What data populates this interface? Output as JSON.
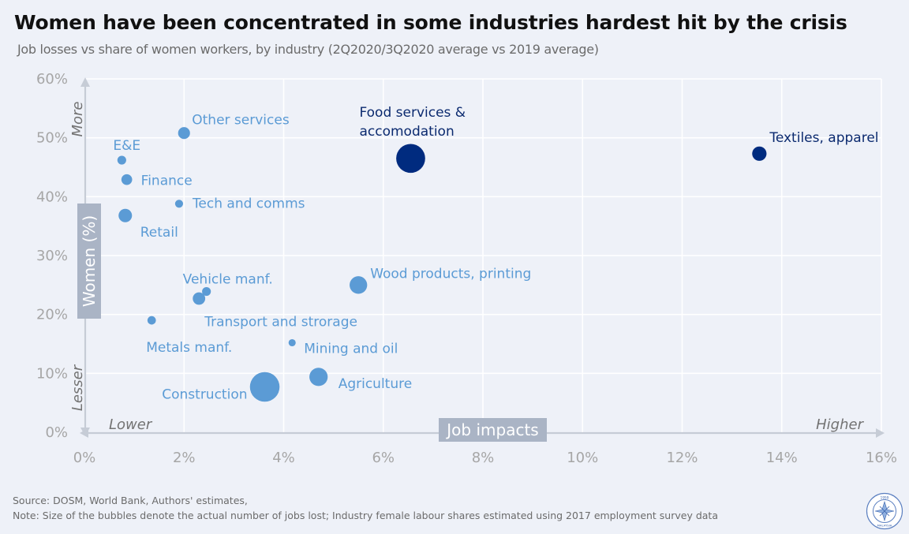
{
  "chart_data": {
    "type": "scatter",
    "title": "Women have been concentrated in some industries hardest hit by the crisis",
    "subtitle": "Job losses vs share of women workers, by industry (2Q2020/3Q2020 average vs 2019 average)",
    "xlim": [
      0,
      16
    ],
    "ylim": [
      0,
      60
    ],
    "x_ticks": [
      "0%",
      "2%",
      "4%",
      "6%",
      "8%",
      "10%",
      "12%",
      "14%",
      "16%"
    ],
    "y_ticks": [
      "0%",
      "10%",
      "20%",
      "30%",
      "40%",
      "50%",
      "60%"
    ],
    "x_tick_values": [
      0,
      2,
      4,
      6,
      8,
      10,
      12,
      14,
      16
    ],
    "y_tick_values": [
      0,
      10,
      20,
      30,
      40,
      50,
      60
    ],
    "xlabel": "Job impacts",
    "ylabel": "Women (%)",
    "x_low_label": "Lower",
    "x_high_label": "Higher",
    "y_low_label": "Lesser",
    "y_high_label": "More",
    "grid": true,
    "colors": {
      "light": "#5b9bd5",
      "dark": "#002b7f",
      "label_light": "#5b9bd5",
      "label_dark": "#0b2a6f",
      "axis_text": "#a6a6a6"
    },
    "points": [
      {
        "label": "Other services",
        "x": 2.0,
        "y": 50.8,
        "size": 1.1,
        "color": "light"
      },
      {
        "label": "E&E",
        "x": 0.75,
        "y": 46.2,
        "size": 0.6,
        "color": "light"
      },
      {
        "label": "Finance",
        "x": 0.85,
        "y": 42.9,
        "size": 0.9,
        "color": "light"
      },
      {
        "label": "Tech and comms",
        "x": 1.9,
        "y": 38.8,
        "size": 0.5,
        "color": "light"
      },
      {
        "label": "Retail",
        "x": 0.82,
        "y": 36.8,
        "size": 1.4,
        "color": "light"
      },
      {
        "label": "Food services & accomodation",
        "x": 6.55,
        "y": 46.5,
        "size": 6.5,
        "color": "dark"
      },
      {
        "label": "Textiles, apparel",
        "x": 13.55,
        "y": 47.3,
        "size": 1.6,
        "color": "dark"
      },
      {
        "label": "Vehicle manf.",
        "x": 2.45,
        "y": 23.9,
        "size": 0.6,
        "color": "light"
      },
      {
        "label": "Transport and strorage",
        "x": 2.3,
        "y": 22.7,
        "size": 1.2,
        "color": "light"
      },
      {
        "label": "Wood products, printing",
        "x": 5.5,
        "y": 25.0,
        "size": 2.4,
        "color": "light"
      },
      {
        "label": "Metals manf.",
        "x": 1.35,
        "y": 19.0,
        "size": 0.55,
        "color": "light"
      },
      {
        "label": "Mining and oil",
        "x": 4.17,
        "y": 15.2,
        "size": 0.4,
        "color": "light"
      },
      {
        "label": "Agriculture",
        "x": 4.7,
        "y": 9.4,
        "size": 2.6,
        "color": "light"
      },
      {
        "label": "Construction",
        "x": 3.62,
        "y": 7.7,
        "size": 6.8,
        "color": "light"
      }
    ]
  },
  "footer": {
    "source": "Source: DOSM, World Bank, Authors' estimates,",
    "note": "Note: Size of the bubbles denote the actual number of jobs lost; Industry female labour shares estimated using 2017 employment survey data"
  },
  "logo": {
    "icon": "seal-logo-icon",
    "text_top": "1959",
    "text_bottom": "MALAYSIA"
  }
}
